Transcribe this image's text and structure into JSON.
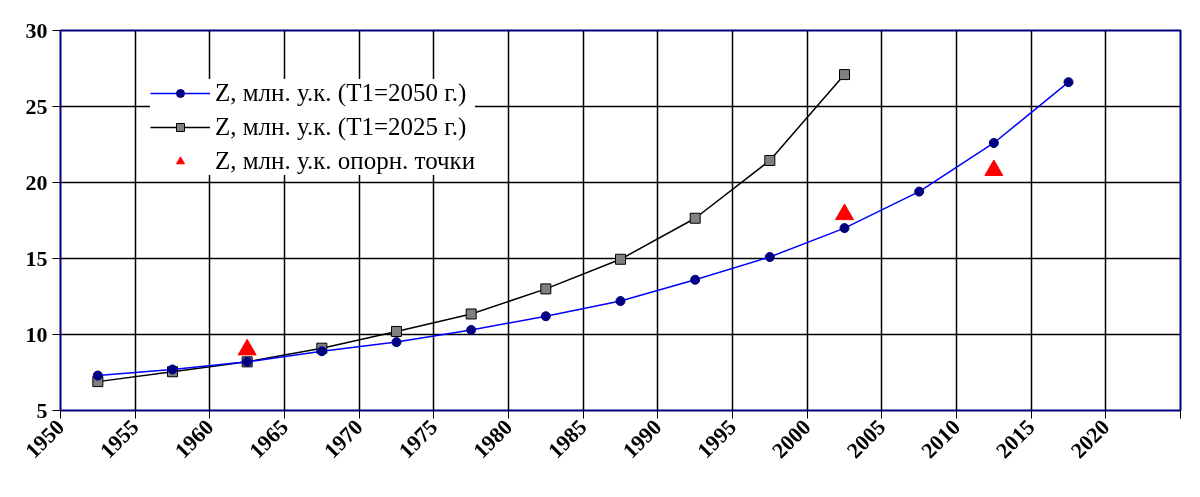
{
  "chart_data": {
    "type": "line",
    "xlim": [
      1950,
      2025
    ],
    "xticks": [
      1950,
      1955,
      1960,
      1965,
      1970,
      1975,
      1980,
      1985,
      1990,
      1995,
      2000,
      2005,
      2010,
      2015,
      2020,
      {
        "value": 2025,
        "label": null
      }
    ],
    "ylim": [
      5,
      30
    ],
    "yticks": [
      5,
      10,
      15,
      20,
      25,
      30
    ],
    "grid": true,
    "legend": "top left",
    "x": [
      1952.5,
      1957.5,
      1962.5,
      1967.5,
      1972.5,
      1977.5,
      1982.5,
      1987.5,
      1992.5,
      1997.5,
      2002.5,
      2007.5,
      2012.5,
      2017.5
    ],
    "series": [
      {
        "name": "Z, млн. у.к. (T1=2050 г.)",
        "color": "#0000ff",
        "marker": "circle",
        "values": [
          7.3,
          7.7,
          8.2,
          8.9,
          9.5,
          10.3,
          11.2,
          12.2,
          13.6,
          15.1,
          17.0,
          19.4,
          22.6,
          26.6
        ]
      },
      {
        "name": "Z, млн. у.к. (T1=2025 г.)",
        "color": "#000000",
        "marker": "square",
        "x": [
          1952.5,
          1957.5,
          1962.5,
          1967.5,
          1972.5,
          1977.5,
          1982.5,
          1987.5,
          1992.5,
          1997.5,
          2002.5
        ],
        "values": [
          6.9,
          7.55,
          8.2,
          9.1,
          10.2,
          11.35,
          13.0,
          14.95,
          17.65,
          21.45,
          27.1
        ]
      },
      {
        "name": "Z, млн. у.к. опорн. точки",
        "color": "#ff0000",
        "type": "scatter",
        "marker": "triangle",
        "x": [
          1962.5,
          2002.5,
          2012.5
        ],
        "values": [
          9.0,
          17.9,
          20.8
        ]
      }
    ]
  }
}
